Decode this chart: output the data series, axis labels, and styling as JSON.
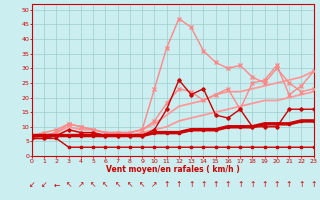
{
  "xlabel": "Vent moyen/en rafales ( km/h )",
  "xlim": [
    0,
    23
  ],
  "ylim": [
    0,
    52
  ],
  "yticks": [
    0,
    5,
    10,
    15,
    20,
    25,
    30,
    35,
    40,
    45,
    50
  ],
  "xticks": [
    0,
    1,
    2,
    3,
    4,
    5,
    6,
    7,
    8,
    9,
    10,
    11,
    12,
    13,
    14,
    15,
    16,
    17,
    18,
    19,
    20,
    21,
    22,
    23
  ],
  "background_color": "#cbeef0",
  "grid_color": "#9ecece",
  "line_thick_red_x": [
    0,
    1,
    2,
    3,
    4,
    5,
    6,
    7,
    8,
    9,
    10,
    11,
    12,
    13,
    14,
    15,
    16,
    17,
    18,
    19,
    20,
    21,
    22,
    23
  ],
  "line_thick_red_y": [
    7,
    7,
    7,
    7,
    7,
    7,
    7,
    7,
    7,
    7,
    8,
    8,
    8,
    9,
    9,
    9,
    10,
    10,
    10,
    11,
    11,
    11,
    12,
    12
  ],
  "line_thick_red_color": "#cc0000",
  "line_thick_red_lw": 2.5,
  "line_dark_red_diamond_x": [
    0,
    1,
    2,
    3,
    4,
    5,
    6,
    7,
    8,
    9,
    10,
    11,
    12,
    13,
    14,
    15,
    16,
    17,
    18,
    19,
    20,
    21,
    22,
    23
  ],
  "line_dark_red_diamond_y": [
    6,
    6,
    7,
    9,
    8,
    8,
    7,
    7,
    7,
    7,
    9,
    16,
    26,
    21,
    23,
    14,
    13,
    16,
    10,
    10,
    10,
    16,
    16,
    16
  ],
  "line_dark_red_diamond_color": "#cc0000",
  "line_dark_red_diamond_lw": 1.0,
  "line_dark_red_low_x": [
    0,
    1,
    2,
    3,
    4,
    5,
    6,
    7,
    8,
    9,
    10,
    11,
    12,
    13,
    14,
    15,
    16,
    17,
    18,
    19,
    20,
    21,
    22,
    23
  ],
  "line_dark_red_low_y": [
    6,
    6,
    6,
    3,
    3,
    3,
    3,
    3,
    3,
    3,
    3,
    3,
    3,
    3,
    3,
    3,
    3,
    3,
    3,
    3,
    3,
    3,
    3,
    3
  ],
  "line_dark_red_low_color": "#cc0000",
  "line_dark_red_low_lw": 1.0,
  "line_pink_peak_x": [
    0,
    1,
    2,
    3,
    4,
    5,
    6,
    7,
    8,
    9,
    10,
    11,
    12,
    13,
    14,
    15,
    16,
    17,
    18,
    19,
    20,
    21,
    22,
    23
  ],
  "line_pink_peak_y": [
    7,
    7,
    8,
    11,
    10,
    9,
    8,
    8,
    8,
    9,
    23,
    37,
    47,
    44,
    36,
    32,
    30,
    31,
    27,
    25,
    30,
    25,
    22,
    23
  ],
  "line_pink_peak_color": "#ff8888",
  "line_pink_peak_lw": 1.0,
  "line_pink_mid_x": [
    0,
    1,
    2,
    3,
    4,
    5,
    6,
    7,
    8,
    9,
    10,
    11,
    12,
    13,
    14,
    15,
    16,
    17,
    18,
    19,
    20,
    21,
    22,
    23
  ],
  "line_pink_mid_y": [
    7,
    8,
    9,
    11,
    10,
    9,
    8,
    8,
    8,
    9,
    12,
    18,
    23,
    22,
    19,
    21,
    23,
    16,
    25,
    26,
    31,
    21,
    24,
    29
  ],
  "line_pink_mid_color": "#ff8888",
  "line_pink_mid_lw": 1.0,
  "line_pink_upper_x": [
    0,
    1,
    2,
    3,
    4,
    5,
    6,
    7,
    8,
    9,
    10,
    11,
    12,
    13,
    14,
    15,
    16,
    17,
    18,
    19,
    20,
    21,
    22,
    23
  ],
  "line_pink_upper_y": [
    7,
    7,
    8,
    10,
    9,
    9,
    8,
    8,
    8,
    9,
    11,
    14,
    17,
    18,
    19,
    21,
    22,
    22,
    23,
    24,
    25,
    26,
    27,
    29
  ],
  "line_pink_upper_color": "#ff9999",
  "line_pink_upper_lw": 1.3,
  "line_pink_lower_x": [
    0,
    1,
    2,
    3,
    4,
    5,
    6,
    7,
    8,
    9,
    10,
    11,
    12,
    13,
    14,
    15,
    16,
    17,
    18,
    19,
    20,
    21,
    22,
    23
  ],
  "line_pink_lower_y": [
    6,
    7,
    7,
    9,
    8,
    8,
    7,
    7,
    7,
    8,
    9,
    10,
    12,
    13,
    14,
    15,
    16,
    17,
    18,
    19,
    19,
    20,
    21,
    22
  ],
  "line_pink_lower_color": "#ff9999",
  "line_pink_lower_lw": 1.3,
  "arrow_chars": [
    "↙",
    "↙",
    "←",
    "↖",
    "↗",
    "↖",
    "↖",
    "↖",
    "↖",
    "↖",
    "↗",
    "↑",
    "↑",
    "↑",
    "↑",
    "↑",
    "↑",
    "↑",
    "↑",
    "↑",
    "↑",
    "↑",
    "↑",
    "↑"
  ],
  "arrow_color": "#cc0000",
  "arrow_fontsize": 5.5
}
